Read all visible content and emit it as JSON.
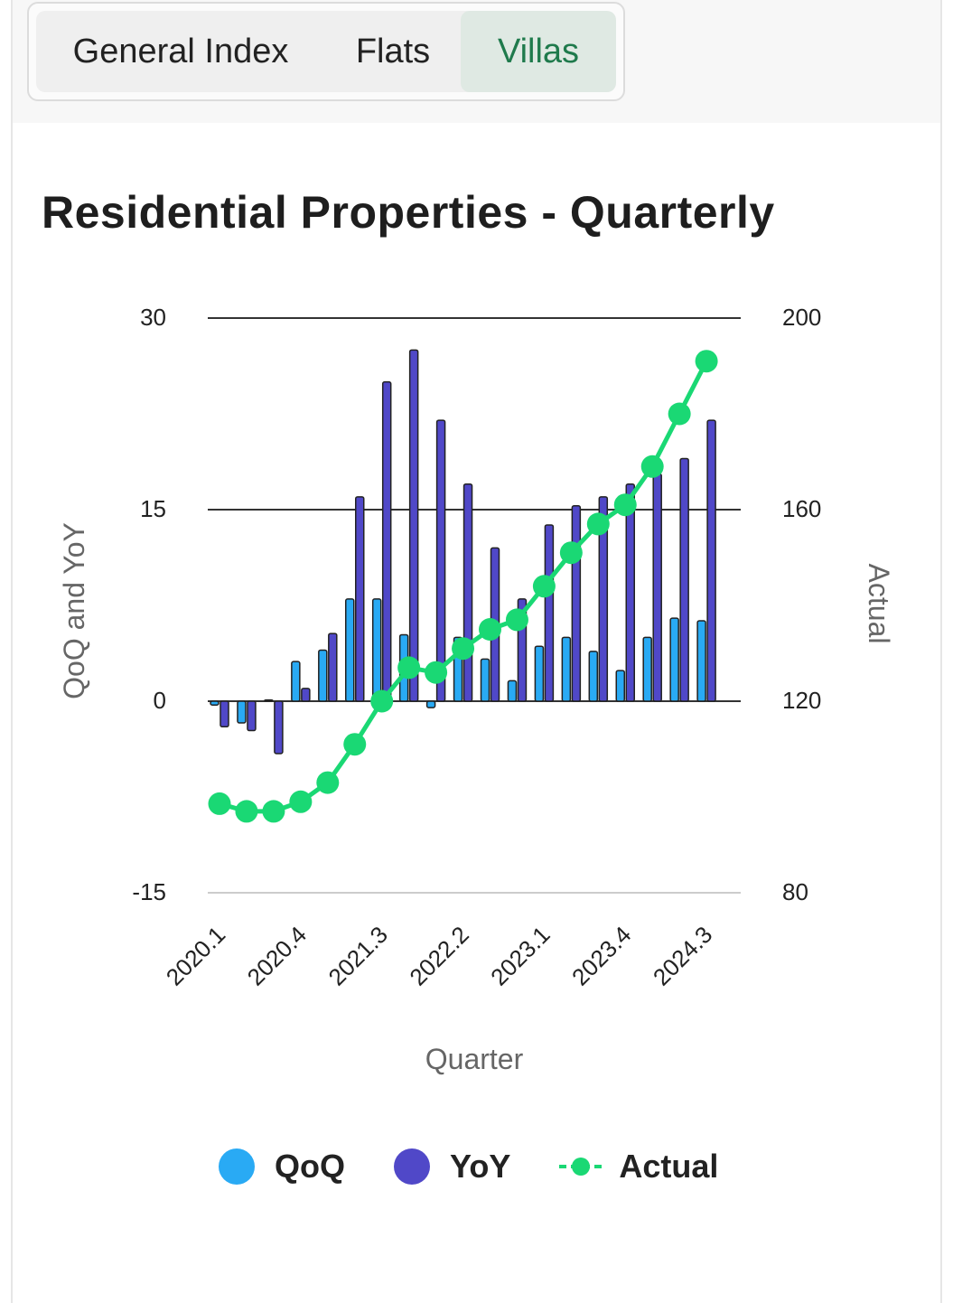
{
  "tabs": [
    {
      "label": "General Index"
    },
    {
      "label": "Flats"
    },
    {
      "label": "Villas"
    }
  ],
  "active_tab": "Villas",
  "colors": {
    "qoq": "#29aaf4",
    "yoy": "#5048c8",
    "actual": "#1ad874",
    "accent": "#1f7a4c"
  },
  "chart_data": {
    "type": "bar+line",
    "title": "Residential Properties - Quarterly",
    "xlabel": "Quarter",
    "ylabel_left": "QoQ and YoY",
    "ylabel_right": "Actual",
    "ylim_left": [
      -15,
      30
    ],
    "ylim_right": [
      80,
      200
    ],
    "yticks_left": [
      "-15",
      "0",
      "15",
      "30"
    ],
    "yticks_right": [
      "80",
      "120",
      "160",
      "200"
    ],
    "categories": [
      "2020.1",
      "2020.2",
      "2020.3",
      "2020.4",
      "2021.1",
      "2021.2",
      "2021.3",
      "2021.4",
      "2022.1",
      "2022.2",
      "2022.3",
      "2022.4",
      "2023.1",
      "2023.2",
      "2023.3",
      "2023.4",
      "2024.1",
      "2024.2",
      "2024.3"
    ],
    "xtick_labels": [
      "2020.1",
      "2020.4",
      "2021.3",
      "2022.2",
      "2023.1",
      "2023.4",
      "2024.3"
    ],
    "series": [
      {
        "name": "QoQ",
        "type": "bar",
        "axis": "left",
        "values": [
          -0.3,
          -1.7,
          0.1,
          3.1,
          4.0,
          8.0,
          8.0,
          5.2,
          -0.5,
          5.0,
          3.3,
          1.6,
          4.3,
          5.0,
          3.9,
          2.4,
          5.0,
          6.5,
          6.3
        ]
      },
      {
        "name": "YoY",
        "type": "bar",
        "axis": "left",
        "values": [
          -2.0,
          -2.3,
          -4.1,
          1.0,
          5.3,
          16.0,
          25.0,
          27.5,
          22.0,
          17.0,
          12.0,
          8.0,
          13.8,
          15.3,
          16.0,
          17.0,
          17.8,
          19.0,
          22.0
        ]
      },
      {
        "name": "Actual",
        "type": "line",
        "axis": "right",
        "values": [
          98.6,
          97.0,
          97.0,
          99.0,
          103.0,
          111.0,
          120.0,
          127.0,
          126.0,
          131.0,
          135.0,
          137.0,
          144.0,
          151.0,
          157.0,
          161.0,
          169.0,
          180.0,
          191.0
        ]
      }
    ],
    "legend": [
      "QoQ",
      "YoY",
      "Actual"
    ],
    "legend_position": "bottom"
  }
}
